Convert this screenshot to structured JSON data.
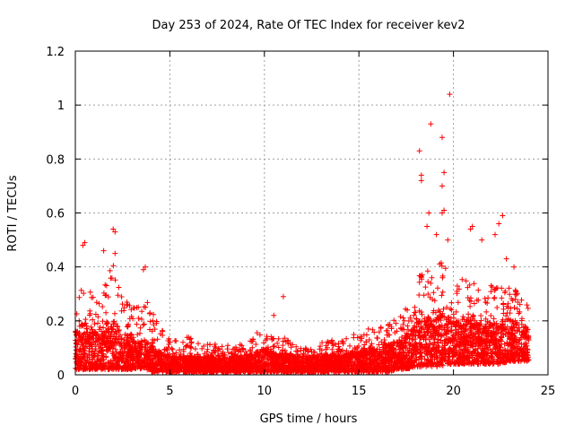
{
  "chart_data": {
    "type": "scatter",
    "title": "Day 253 of 2024, Rate Of TEC Index for receiver kev2",
    "xlabel": "GPS time / hours",
    "ylabel": "ROTI / TECUs",
    "xlim": [
      0,
      25
    ],
    "ylim": [
      0,
      1.2
    ],
    "xticks": [
      0,
      5,
      10,
      15,
      20,
      25
    ],
    "xtick_labels": [
      "0",
      "5",
      "10",
      "15",
      "20",
      "25"
    ],
    "yticks": [
      0,
      0.2,
      0.4,
      0.6,
      0.8,
      1,
      1.2
    ],
    "ytick_labels": [
      "0",
      "0.2",
      "0.4",
      "0.6",
      "0.8",
      "1",
      "1.2"
    ],
    "grid": true,
    "marker": "+",
    "series_color": "#ff0000",
    "envelope": {
      "x": [
        0,
        0.5,
        1,
        1.5,
        2,
        2.5,
        3,
        3.5,
        4,
        4.5,
        5,
        5.5,
        6,
        6.5,
        7,
        7.5,
        8,
        8.5,
        9,
        9.5,
        10,
        10.5,
        11,
        11.5,
        12,
        12.5,
        13,
        13.5,
        14,
        14.5,
        15,
        15.5,
        16,
        16.5,
        17,
        17.5,
        18,
        18.5,
        19,
        19.5,
        20,
        20.5,
        21,
        21.5,
        22,
        22.5,
        23,
        23.5,
        24
      ],
      "low": [
        0.02,
        0.02,
        0.02,
        0.02,
        0.02,
        0.02,
        0.02,
        0.02,
        0.01,
        0.01,
        0.01,
        0.01,
        0.01,
        0.01,
        0.01,
        0.01,
        0.01,
        0.01,
        0.01,
        0.01,
        0.01,
        0.01,
        0.01,
        0.01,
        0.01,
        0.01,
        0.01,
        0.01,
        0.01,
        0.01,
        0.01,
        0.01,
        0.01,
        0.01,
        0.02,
        0.02,
        0.03,
        0.03,
        0.03,
        0.03,
        0.04,
        0.04,
        0.04,
        0.04,
        0.04,
        0.04,
        0.05,
        0.05,
        0.05
      ],
      "high": [
        0.32,
        0.38,
        0.28,
        0.33,
        0.42,
        0.28,
        0.26,
        0.3,
        0.25,
        0.18,
        0.14,
        0.12,
        0.15,
        0.12,
        0.12,
        0.12,
        0.13,
        0.11,
        0.12,
        0.16,
        0.16,
        0.15,
        0.14,
        0.12,
        0.1,
        0.1,
        0.13,
        0.15,
        0.12,
        0.16,
        0.15,
        0.18,
        0.17,
        0.19,
        0.22,
        0.26,
        0.36,
        0.38,
        0.42,
        0.44,
        0.34,
        0.36,
        0.38,
        0.3,
        0.34,
        0.32,
        0.35,
        0.3,
        0.25
      ],
      "mid": [
        0.12,
        0.14,
        0.12,
        0.13,
        0.15,
        0.11,
        0.1,
        0.1,
        0.08,
        0.06,
        0.05,
        0.05,
        0.05,
        0.05,
        0.05,
        0.05,
        0.05,
        0.05,
        0.05,
        0.06,
        0.07,
        0.06,
        0.06,
        0.05,
        0.05,
        0.05,
        0.05,
        0.06,
        0.05,
        0.06,
        0.06,
        0.07,
        0.07,
        0.08,
        0.09,
        0.11,
        0.14,
        0.15,
        0.17,
        0.18,
        0.14,
        0.15,
        0.15,
        0.13,
        0.14,
        0.14,
        0.15,
        0.14,
        0.12
      ]
    },
    "outliers": [
      {
        "x": 19.8,
        "y": 1.04
      },
      {
        "x": 18.8,
        "y": 0.93
      },
      {
        "x": 19.4,
        "y": 0.88
      },
      {
        "x": 18.2,
        "y": 0.83
      },
      {
        "x": 18.3,
        "y": 0.74
      },
      {
        "x": 18.3,
        "y": 0.72
      },
      {
        "x": 19.5,
        "y": 0.75
      },
      {
        "x": 19.4,
        "y": 0.7
      },
      {
        "x": 19.5,
        "y": 0.61
      },
      {
        "x": 19.4,
        "y": 0.6
      },
      {
        "x": 18.7,
        "y": 0.6
      },
      {
        "x": 18.6,
        "y": 0.55
      },
      {
        "x": 19.1,
        "y": 0.52
      },
      {
        "x": 19.7,
        "y": 0.5
      },
      {
        "x": 22.6,
        "y": 0.59
      },
      {
        "x": 22.4,
        "y": 0.56
      },
      {
        "x": 21.0,
        "y": 0.55
      },
      {
        "x": 20.9,
        "y": 0.54
      },
      {
        "x": 21.5,
        "y": 0.5
      },
      {
        "x": 22.2,
        "y": 0.52
      },
      {
        "x": 2.0,
        "y": 0.54
      },
      {
        "x": 2.1,
        "y": 0.53
      },
      {
        "x": 0.5,
        "y": 0.49
      },
      {
        "x": 0.4,
        "y": 0.48
      },
      {
        "x": 2.1,
        "y": 0.45
      },
      {
        "x": 1.5,
        "y": 0.46
      },
      {
        "x": 3.7,
        "y": 0.4
      },
      {
        "x": 3.6,
        "y": 0.39
      },
      {
        "x": 11.0,
        "y": 0.29
      },
      {
        "x": 10.5,
        "y": 0.22
      },
      {
        "x": 23.2,
        "y": 0.4
      },
      {
        "x": 22.8,
        "y": 0.43
      }
    ]
  }
}
